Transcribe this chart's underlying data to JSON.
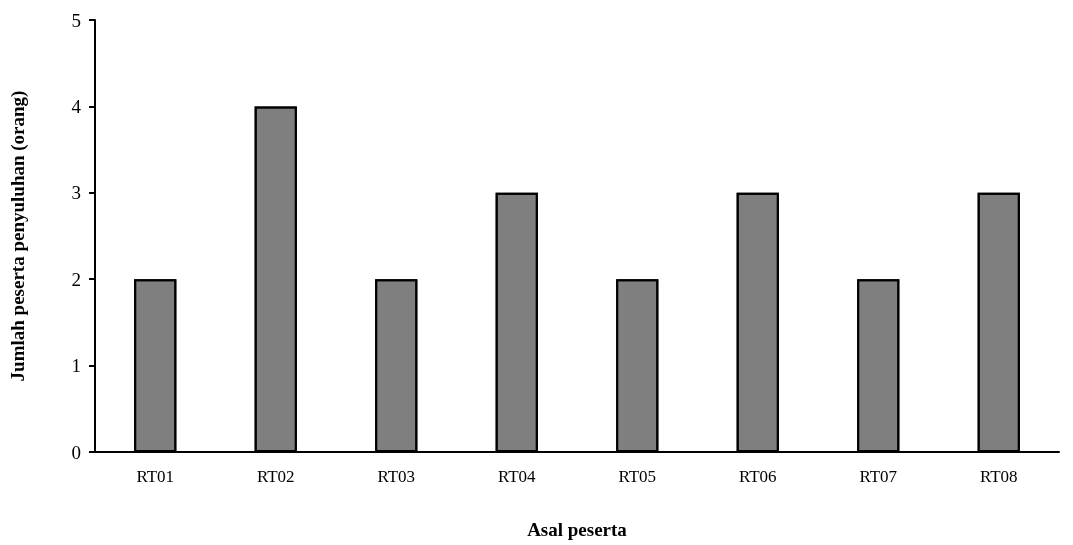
{
  "chart_data": {
    "type": "bar",
    "xlabel": "Asal peserta",
    "ylabel": "Jumlah peserta penyuluhan (orang)",
    "categories": [
      "RT01",
      "RT02",
      "RT03",
      "RT04",
      "RT05",
      "RT06",
      "RT07",
      "RT08"
    ],
    "values": [
      2,
      4,
      2,
      3,
      2,
      3,
      2,
      3
    ],
    "color": "#7f7f7f",
    "ylim": [
      0,
      5
    ],
    "yticks": [
      0,
      1,
      2,
      3,
      4,
      5
    ],
    "grid": false
  }
}
